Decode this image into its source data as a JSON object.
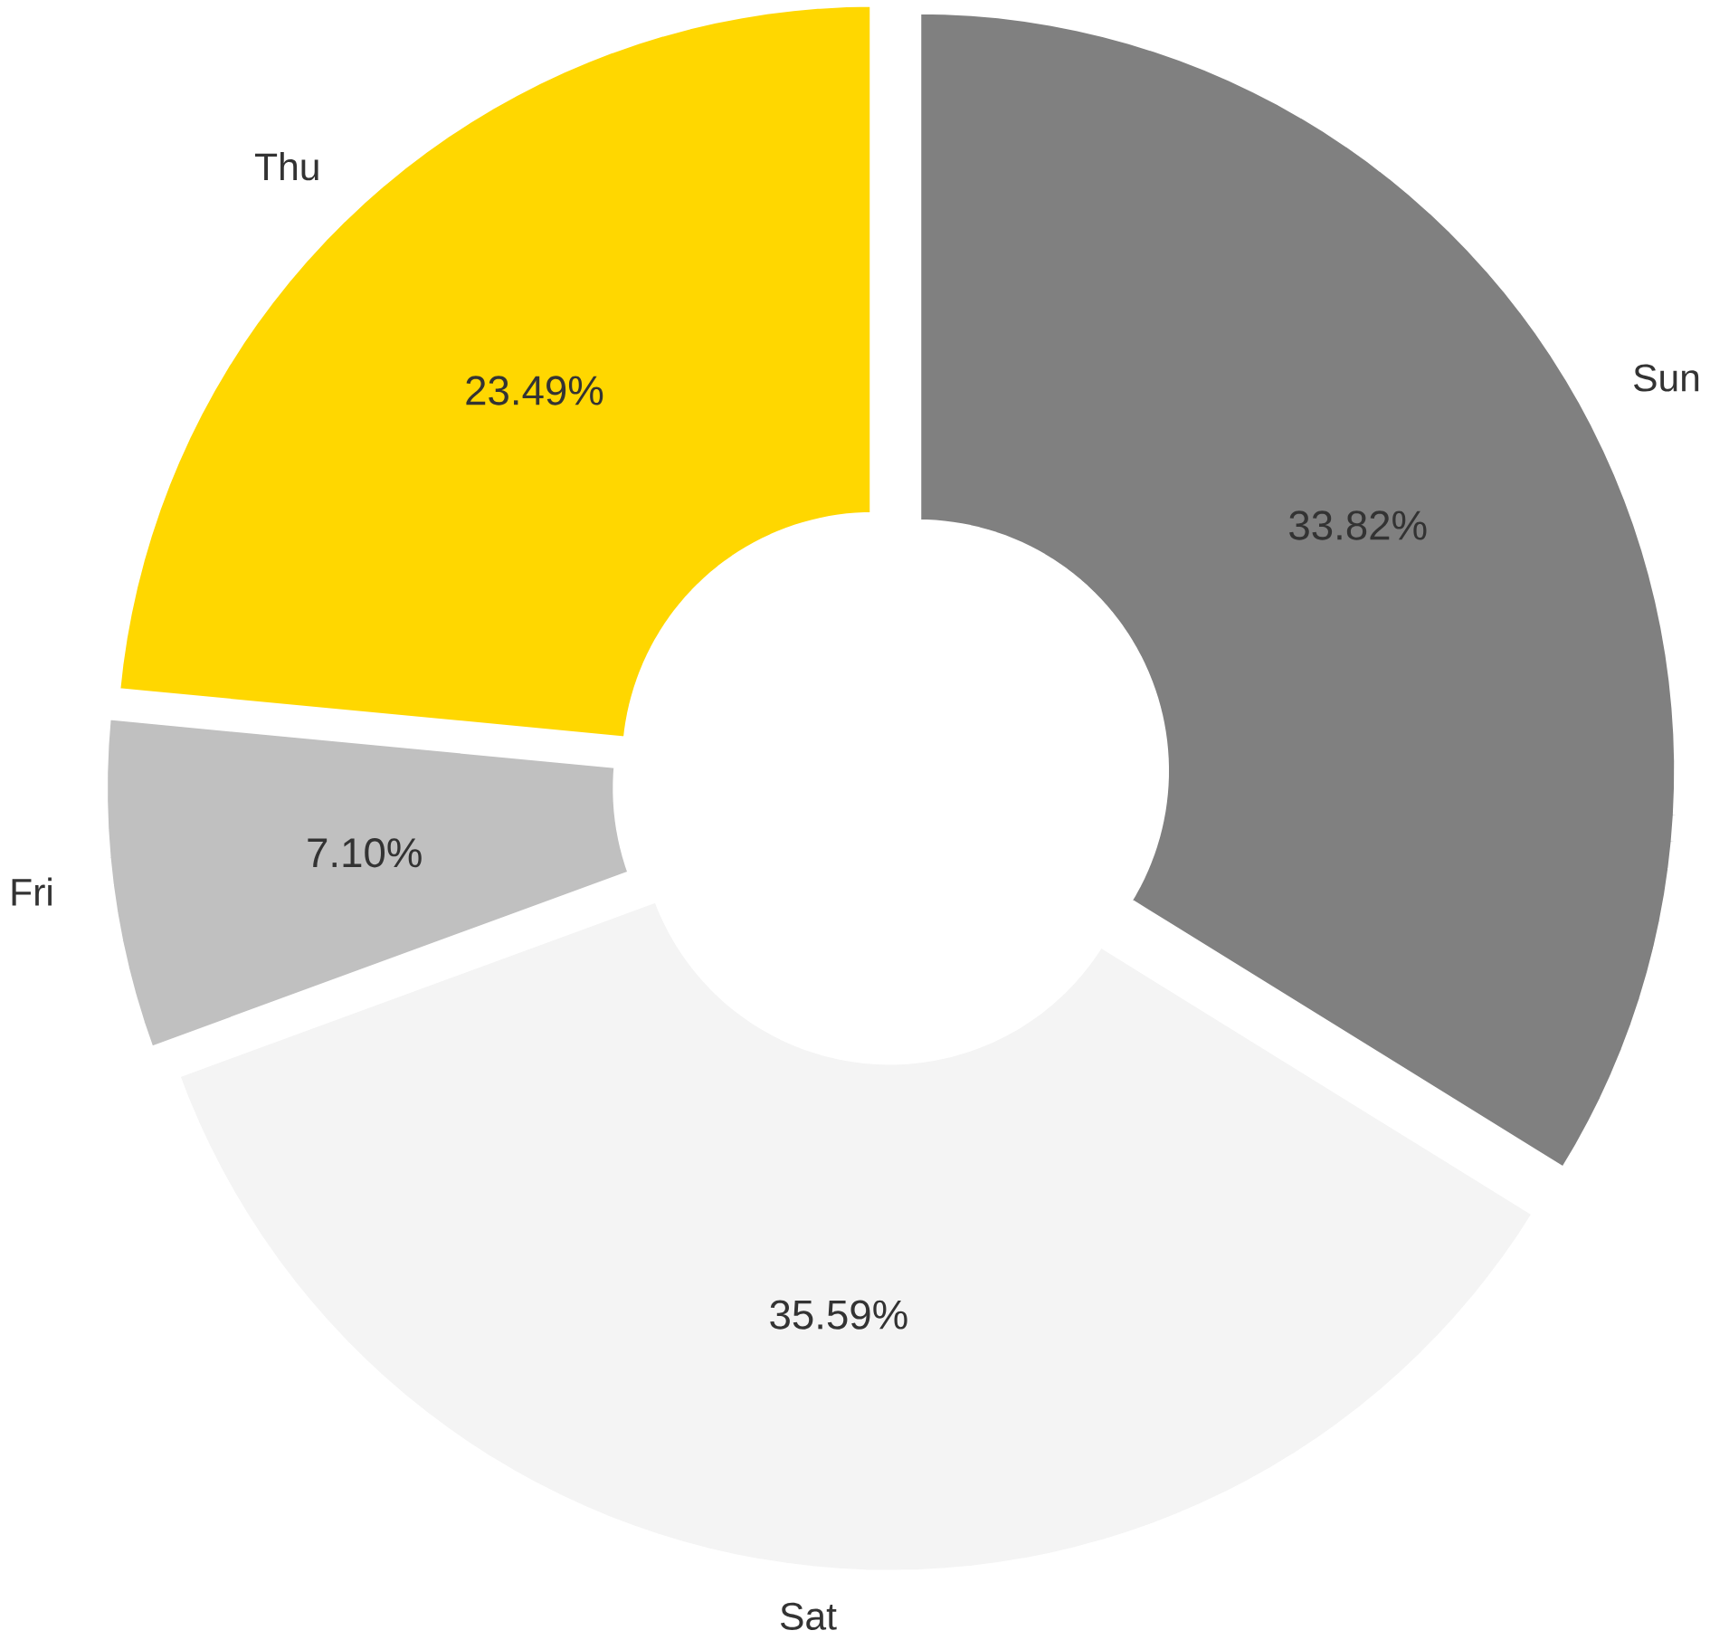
{
  "chart_data": {
    "type": "donut",
    "categories": [
      "Thu",
      "Fri",
      "Sat",
      "Sun"
    ],
    "values": [
      23.49,
      7.1,
      35.59,
      33.82
    ],
    "value_labels": [
      "23.49%",
      "7.10%",
      "35.59%",
      "33.82%"
    ],
    "colors": [
      "#ffd700",
      "#c0c0c0",
      "#f4f4f4",
      "#808080"
    ]
  }
}
